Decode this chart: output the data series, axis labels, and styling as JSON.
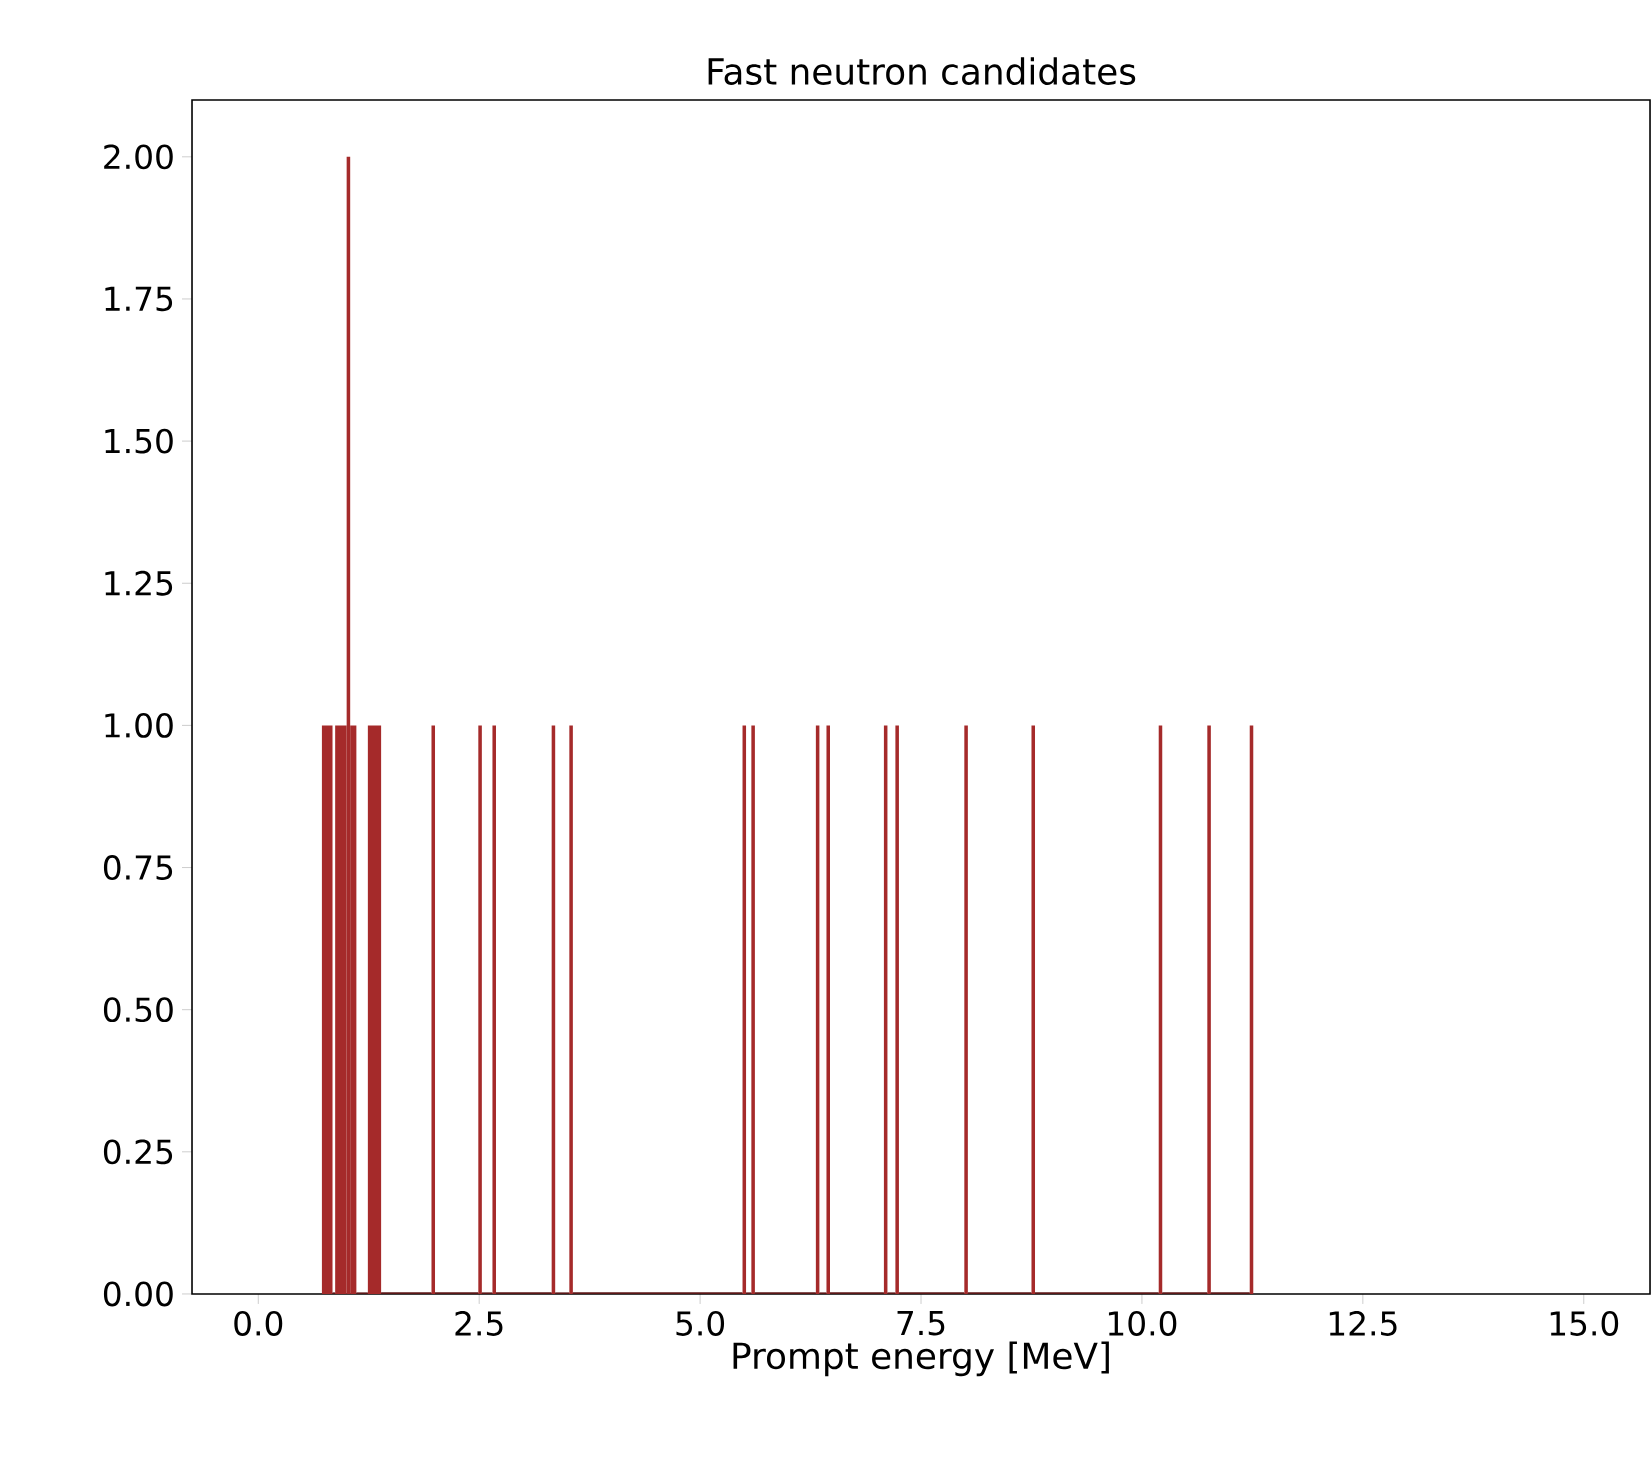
{
  "chart_data": {
    "type": "histogram",
    "title": "Fast neutron candidates",
    "xlabel": "Prompt energy [MeV]",
    "color": "#a52a2a",
    "bins": [
      0.72,
      0.84,
      0.87,
      1.0,
      1.04,
      1.11,
      1.24,
      1.39,
      1.96,
      2.0,
      2.49,
      2.53,
      2.65,
      2.69,
      3.32,
      3.36,
      3.52,
      3.56,
      5.48,
      5.52,
      5.58,
      5.62,
      6.31,
      6.35,
      6.43,
      6.47,
      7.08,
      7.12,
      7.21,
      7.25,
      7.99,
      8.03,
      8.75,
      8.79,
      10.19,
      10.23,
      10.74,
      10.78,
      11.22,
      11.26
    ],
    "values": [
      1,
      0,
      1,
      2,
      1,
      0,
      1,
      0,
      1,
      0,
      1,
      0,
      1,
      0,
      1,
      0,
      1,
      0,
      1,
      0,
      1,
      0,
      1,
      0,
      1,
      0,
      1,
      0,
      1,
      0,
      1,
      0,
      1,
      0,
      1,
      0,
      1,
      0,
      1
    ],
    "xlim": [
      -0.75,
      15.75
    ],
    "ylim": [
      0,
      2.1
    ],
    "xticks": [
      {
        "value": 0,
        "label": "0.0"
      },
      {
        "value": 2.5,
        "label": "2.5"
      },
      {
        "value": 5,
        "label": "5.0"
      },
      {
        "value": 7.5,
        "label": "7.5"
      },
      {
        "value": 10,
        "label": "10.0"
      },
      {
        "value": 12.5,
        "label": "12.5"
      },
      {
        "value": 15,
        "label": "15.0"
      }
    ],
    "yticks": [
      {
        "value": 0,
        "label": "0.00"
      },
      {
        "value": 0.25,
        "label": "0.25"
      },
      {
        "value": 0.5,
        "label": "0.50"
      },
      {
        "value": 0.75,
        "label": "0.75"
      },
      {
        "value": 1,
        "label": "1.00"
      },
      {
        "value": 1.25,
        "label": "1.25"
      },
      {
        "value": 1.5,
        "label": "1.50"
      },
      {
        "value": 1.75,
        "label": "1.75"
      },
      {
        "value": 2,
        "label": "2.00"
      }
    ],
    "grid": false
  }
}
